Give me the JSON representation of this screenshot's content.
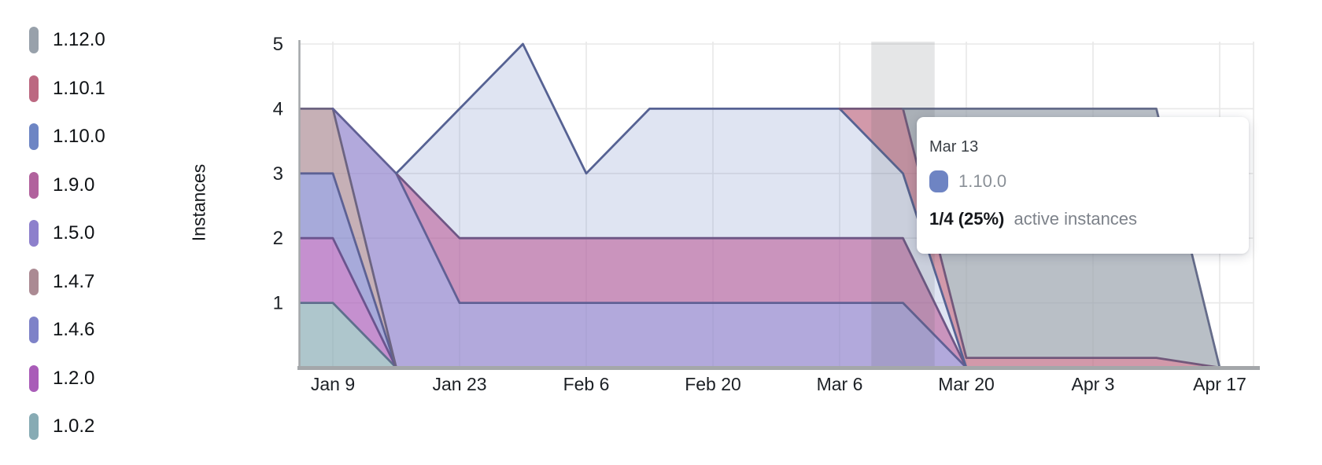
{
  "legend": {
    "items": [
      {
        "label": "1.12.0",
        "color": "#98a1ab"
      },
      {
        "label": "1.10.1",
        "color": "#bc6881"
      },
      {
        "label": "1.10.0",
        "color": "#6d85c4"
      },
      {
        "label": "1.9.0",
        "color": "#b1629d"
      },
      {
        "label": "1.5.0",
        "color": "#8d80cc"
      },
      {
        "label": "1.4.7",
        "color": "#ab8a93"
      },
      {
        "label": "1.4.6",
        "color": "#7e82c8"
      },
      {
        "label": "1.2.0",
        "color": "#a95cb8"
      },
      {
        "label": "1.0.2",
        "color": "#87abb4"
      }
    ]
  },
  "chart_data": {
    "type": "area",
    "stacked": true,
    "title": "",
    "xlabel": "",
    "ylabel": "Instances",
    "ylim": [
      0,
      5
    ],
    "y_ticks": [
      1,
      2,
      3,
      4,
      5
    ],
    "grid": true,
    "legend_position": "left",
    "x": [
      "Jan 2",
      "Jan 9",
      "Jan 16",
      "Jan 23",
      "Jan 30",
      "Feb 6",
      "Feb 13",
      "Feb 20",
      "Feb 27",
      "Mar 6",
      "Mar 13",
      "Mar 20",
      "Mar 27",
      "Apr 3",
      "Apr 10",
      "Apr 17"
    ],
    "x_tick_labels": [
      "Jan 9",
      "Jan 23",
      "Feb 6",
      "Feb 20",
      "Mar 6",
      "Mar 20",
      "Apr 3",
      "Apr 17"
    ],
    "stack_order_note": "series listed top legend first; stacked bottom-to-top in reverse of this list",
    "series": [
      {
        "name": "1.12.0",
        "color": "#98a1ab",
        "fill_opacity": 0.68,
        "values": [
          0,
          0,
          0,
          0,
          0,
          0,
          0,
          0,
          0,
          0,
          0,
          3.85,
          3.85,
          3.85,
          3.85,
          0
        ]
      },
      {
        "name": "1.10.1",
        "color": "#bc6881",
        "fill_opacity": 0.68,
        "values": [
          0,
          0,
          0,
          0,
          0,
          0,
          0,
          0,
          0,
          0,
          1,
          0.15,
          0.15,
          0.15,
          0.15,
          0
        ]
      },
      {
        "name": "1.10.0",
        "color": "#6d85c4",
        "fill_opacity": 0.22,
        "values": [
          0,
          0,
          0,
          2,
          3,
          1,
          2,
          2,
          2,
          2,
          1,
          0,
          0,
          0,
          0,
          0
        ]
      },
      {
        "name": "1.9.0",
        "color": "#b1629d",
        "fill_opacity": 0.68,
        "values": [
          0,
          0,
          0,
          1,
          1,
          1,
          1,
          1,
          1,
          1,
          1,
          0,
          0,
          0,
          0,
          0
        ]
      },
      {
        "name": "1.5.0",
        "color": "#8d80cc",
        "fill_opacity": 0.68,
        "values": [
          0,
          0,
          3,
          1,
          1,
          1,
          1,
          1,
          1,
          1,
          1,
          0,
          0,
          0,
          0,
          0
        ]
      },
      {
        "name": "1.4.7",
        "color": "#ab8a93",
        "fill_opacity": 0.68,
        "values": [
          1,
          1,
          0,
          0,
          0,
          0,
          0,
          0,
          0,
          0,
          0,
          0,
          0,
          0,
          0,
          0
        ]
      },
      {
        "name": "1.4.6",
        "color": "#7e82c8",
        "fill_opacity": 0.68,
        "values": [
          1,
          1,
          0,
          0,
          0,
          0,
          0,
          0,
          0,
          0,
          0,
          0,
          0,
          0,
          0,
          0
        ]
      },
      {
        "name": "1.2.0",
        "color": "#a95cb8",
        "fill_opacity": 0.68,
        "values": [
          1,
          1,
          0,
          0,
          0,
          0,
          0,
          0,
          0,
          0,
          0,
          0,
          0,
          0,
          0,
          0
        ]
      },
      {
        "name": "1.0.2",
        "color": "#87abb4",
        "fill_opacity": 0.68,
        "values": [
          1,
          1,
          0,
          0,
          0,
          0,
          0,
          0,
          0,
          0,
          0,
          0,
          0,
          0,
          0,
          0
        ]
      }
    ],
    "hover_highlight": {
      "date": "Mar 13"
    }
  },
  "tooltip": {
    "date": "Mar 13",
    "series_label": "1.10.0",
    "swatch_color": "#6e84c3",
    "value_text": "1/4 (25%)",
    "value_suffix": "active instances"
  },
  "colors": {
    "gridline": "#e8e8e8",
    "axis": "#a4a7aa",
    "stroke_base": "#4a4f78",
    "highlight_band": "rgba(95,99,106,0.16)",
    "tick_label": "#1c2025"
  }
}
